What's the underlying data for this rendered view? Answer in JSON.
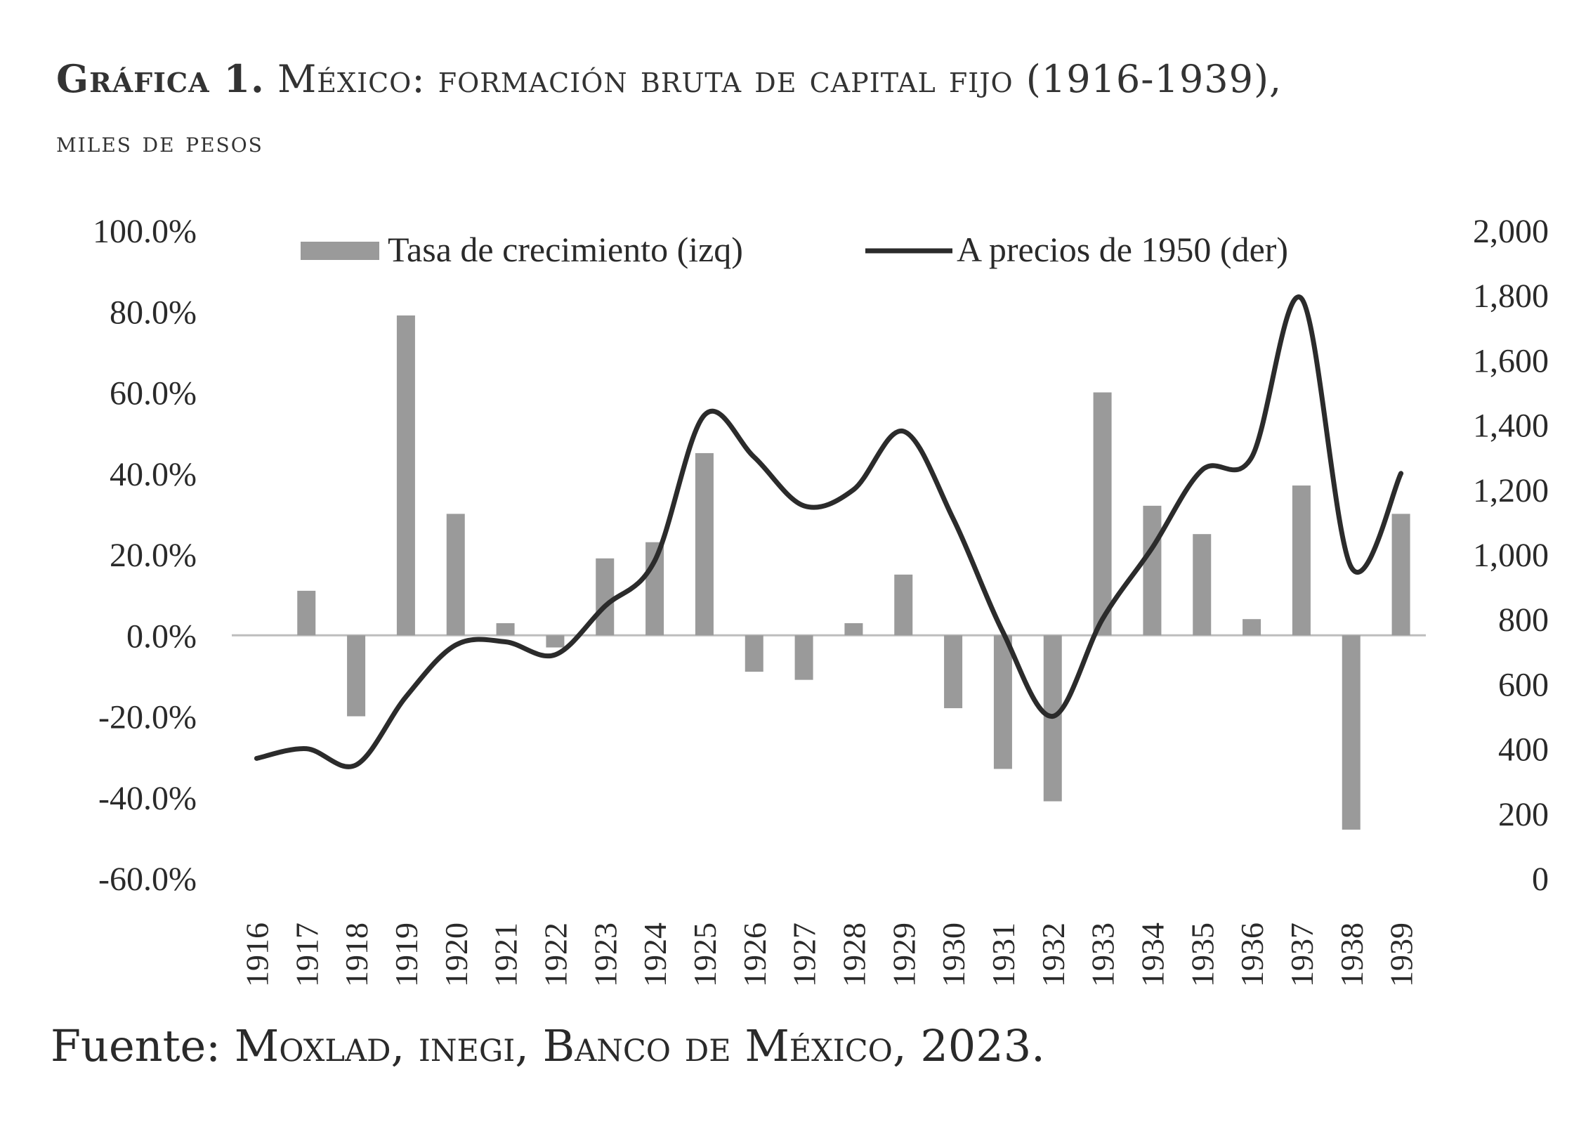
{
  "title": {
    "label": "Gráfica 1.",
    "main": "México: formación bruta de capital fijo (1916-1939),",
    "sub": "miles de pesos"
  },
  "source": {
    "prefix": "Fuente:",
    "text": "Moxlad, inegi, Banco de México, 2023."
  },
  "colors": {
    "bars": "#9a9a9a",
    "line": "#2b2b2b",
    "zero_line": "#bdbdbd",
    "text": "#2a2a2a"
  },
  "chart_data": {
    "type": "bar+line",
    "categories": [
      "1916",
      "1917",
      "1918",
      "1919",
      "1920",
      "1921",
      "1922",
      "1923",
      "1924",
      "1925",
      "1926",
      "1927",
      "1928",
      "1929",
      "1930",
      "1931",
      "1932",
      "1933",
      "1934",
      "1935",
      "1936",
      "1937",
      "1938",
      "1939"
    ],
    "series": [
      {
        "name": "Tasa de crecimiento (izq)",
        "type": "bar",
        "axis": "left",
        "values": [
          null,
          11,
          -20,
          79,
          30,
          3,
          -3,
          19,
          23,
          45,
          -9,
          -11,
          3,
          15,
          -18,
          -33,
          -41,
          60,
          32,
          25,
          4,
          37,
          -48,
          30
        ]
      },
      {
        "name": "A precios de 1950 (der)",
        "type": "line",
        "axis": "right",
        "values": [
          370,
          400,
          350,
          560,
          720,
          730,
          690,
          840,
          980,
          1430,
          1300,
          1150,
          1200,
          1380,
          1110,
          760,
          500,
          800,
          1020,
          1260,
          1300,
          1790,
          960,
          1250
        ]
      }
    ],
    "y_left": {
      "min": -60,
      "max": 100,
      "step": 20,
      "tick_labels": [
        "100.0%",
        "80.0%",
        "60.0%",
        "40.0%",
        "20.0%",
        "0.0%",
        "-20.0%",
        "-40.0%",
        "-60.0%"
      ]
    },
    "y_right": {
      "min": 0,
      "max": 2000,
      "step": 200,
      "tick_labels": [
        "2,000",
        "1,800",
        "1,600",
        "1,400",
        "1,200",
        "1,000",
        "800",
        "600",
        "400",
        "200",
        "0"
      ]
    },
    "legend": [
      "Tasa de crecimiento (izq)",
      "A precios de 1950 (der)"
    ],
    "legend_position": "top-center",
    "grid": false
  }
}
